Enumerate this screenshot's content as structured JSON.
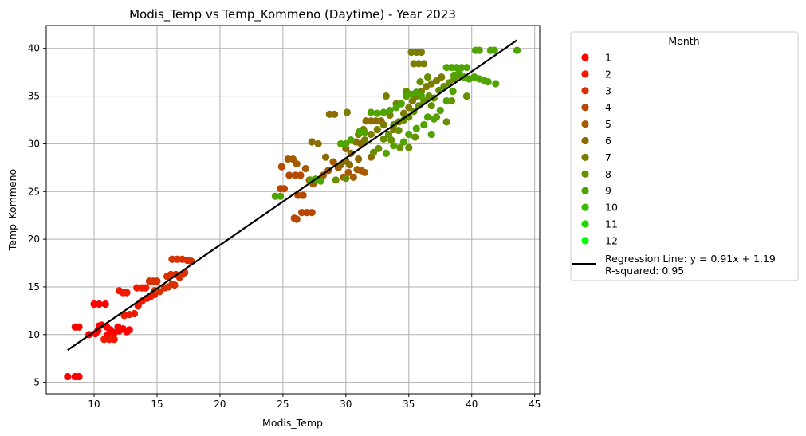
{
  "chart_data": {
    "type": "scatter",
    "title": "Modis_Temp vs Temp_Kommeno (Daytime) - Year 2023",
    "xlabel": "Modis_Temp",
    "ylabel": "Temp_Kommeno",
    "xlim": [
      6.2,
      45.4
    ],
    "ylim": [
      3.8,
      42.4
    ],
    "xticks": [
      10,
      15,
      20,
      25,
      30,
      35,
      40,
      45
    ],
    "yticks": [
      5,
      10,
      15,
      20,
      25,
      30,
      35,
      40
    ],
    "grid": true,
    "legend": {
      "title": "Month",
      "placement": "outside-right",
      "regression_label_line1": "Regression Line: y = 0.91x + 1.19",
      "regression_label_line2": "R-squared: 0.95"
    },
    "regression": {
      "slope": 0.91,
      "intercept": 1.19,
      "r_squared": 0.95,
      "x_range": [
        7.9,
        43.6
      ],
      "color": "#000000"
    },
    "series": [
      {
        "name": "1",
        "color": "#ff0000",
        "points": [
          [
            7.9,
            5.6
          ],
          [
            8.5,
            5.6
          ],
          [
            8.8,
            5.6
          ],
          [
            8.5,
            10.8
          ],
          [
            8.8,
            10.8
          ],
          [
            9.6,
            10.0
          ],
          [
            10.1,
            10.1
          ],
          [
            10.3,
            10.4
          ],
          [
            10.4,
            10.9
          ],
          [
            10.6,
            11.0
          ],
          [
            11.0,
            10.8
          ],
          [
            10.0,
            13.2
          ],
          [
            10.4,
            13.2
          ],
          [
            10.9,
            13.2
          ],
          [
            11.1,
            10.0
          ],
          [
            11.3,
            10.5
          ],
          [
            11.6,
            10.2
          ],
          [
            12.0,
            10.4
          ],
          [
            12.3,
            10.6
          ],
          [
            12.6,
            10.3
          ],
          [
            12.8,
            10.5
          ],
          [
            11.9,
            10.8
          ]
        ]
      },
      {
        "name": "2",
        "color": "#f01a00",
        "points": [
          [
            10.8,
            9.5
          ],
          [
            11.2,
            9.5
          ],
          [
            11.6,
            9.5
          ],
          [
            12.0,
            14.6
          ],
          [
            12.3,
            14.4
          ],
          [
            12.6,
            14.4
          ],
          [
            12.4,
            12.0
          ],
          [
            12.8,
            12.1
          ],
          [
            13.2,
            12.2
          ],
          [
            13.5,
            13.0
          ],
          [
            13.8,
            13.5
          ],
          [
            14.2,
            13.8
          ],
          [
            14.5,
            14.0
          ],
          [
            14.8,
            14.2
          ],
          [
            13.4,
            14.9
          ],
          [
            13.8,
            14.9
          ],
          [
            14.1,
            14.9
          ]
        ]
      },
      {
        "name": "3",
        "color": "#d93000",
        "points": [
          [
            14.4,
            15.6
          ],
          [
            14.7,
            15.6
          ],
          [
            15.0,
            15.6
          ],
          [
            14.8,
            14.6
          ],
          [
            15.2,
            14.5
          ],
          [
            15.6,
            14.9
          ],
          [
            15.9,
            15.0
          ],
          [
            16.2,
            15.3
          ],
          [
            16.4,
            15.2
          ],
          [
            15.8,
            16.1
          ],
          [
            16.1,
            16.3
          ],
          [
            16.5,
            16.3
          ],
          [
            16.8,
            16.0
          ],
          [
            16.2,
            17.9
          ],
          [
            16.6,
            17.9
          ],
          [
            17.0,
            17.9
          ],
          [
            17.4,
            17.8
          ],
          [
            17.7,
            17.7
          ],
          [
            17.0,
            16.3
          ],
          [
            17.2,
            16.5
          ]
        ]
      },
      {
        "name": "4",
        "color": "#b84800",
        "points": [
          [
            25.9,
            22.2
          ],
          [
            26.1,
            22.1
          ],
          [
            26.5,
            22.8
          ],
          [
            26.9,
            22.8
          ],
          [
            27.3,
            22.8
          ],
          [
            26.2,
            24.6
          ],
          [
            26.6,
            24.6
          ],
          [
            24.8,
            25.3
          ],
          [
            25.1,
            25.3
          ],
          [
            24.9,
            27.6
          ],
          [
            25.5,
            26.7
          ],
          [
            26.0,
            26.7
          ],
          [
            26.4,
            26.7
          ]
        ]
      },
      {
        "name": "5",
        "color": "#a55a00",
        "points": [
          [
            25.4,
            28.4
          ],
          [
            25.8,
            28.4
          ],
          [
            26.1,
            27.9
          ],
          [
            26.8,
            27.4
          ],
          [
            27.1,
            26.2
          ],
          [
            27.4,
            25.8
          ],
          [
            27.8,
            26.2
          ],
          [
            28.2,
            26.7
          ],
          [
            28.6,
            27.2
          ],
          [
            29.0,
            28.1
          ],
          [
            29.4,
            27.5
          ],
          [
            29.8,
            26.5
          ],
          [
            30.2,
            27.0
          ],
          [
            30.6,
            26.5
          ],
          [
            30.9,
            27.3
          ],
          [
            31.2,
            27.2
          ],
          [
            31.5,
            27.0
          ]
        ]
      },
      {
        "name": "6",
        "color": "#8c6c00",
        "points": [
          [
            27.3,
            30.2
          ],
          [
            27.8,
            30.0
          ],
          [
            28.4,
            28.6
          ],
          [
            28.7,
            33.1
          ],
          [
            29.1,
            33.1
          ],
          [
            30.0,
            29.5
          ],
          [
            30.4,
            29.0
          ],
          [
            30.8,
            30.2
          ],
          [
            31.2,
            30.0
          ],
          [
            31.4,
            31.5
          ],
          [
            31.6,
            32.4
          ],
          [
            32.0,
            32.4
          ],
          [
            32.4,
            32.4
          ],
          [
            32.8,
            32.4
          ],
          [
            29.6,
            27.8
          ],
          [
            30.0,
            28.2
          ],
          [
            30.3,
            27.8
          ],
          [
            31.0,
            28.4
          ],
          [
            32.0,
            28.6
          ]
        ]
      },
      {
        "name": "7",
        "color": "#7a7e00",
        "points": [
          [
            30.1,
            33.3
          ],
          [
            31.0,
            31.0
          ],
          [
            31.5,
            30.4
          ],
          [
            32.0,
            31.0
          ],
          [
            32.5,
            31.5
          ],
          [
            33.0,
            32.0
          ],
          [
            33.5,
            33.0
          ],
          [
            33.8,
            31.5
          ],
          [
            34.2,
            32.3
          ],
          [
            34.6,
            33.2
          ],
          [
            35.0,
            33.8
          ],
          [
            35.3,
            34.5
          ],
          [
            35.6,
            35.0
          ],
          [
            36.0,
            35.5
          ],
          [
            36.4,
            36.0
          ],
          [
            36.8,
            36.3
          ],
          [
            37.2,
            36.6
          ],
          [
            37.6,
            37.0
          ],
          [
            35.2,
            39.6
          ],
          [
            35.6,
            39.6
          ],
          [
            36.0,
            39.6
          ],
          [
            35.4,
            38.4
          ],
          [
            35.8,
            38.4
          ],
          [
            36.2,
            38.4
          ],
          [
            33.2,
            35.0
          ],
          [
            34.0,
            34.2
          ]
        ]
      },
      {
        "name": "8",
        "color": "#669000",
        "points": [
          [
            29.2,
            26.2
          ],
          [
            30.0,
            26.4
          ],
          [
            32.2,
            29.1
          ],
          [
            32.6,
            29.5
          ],
          [
            33.0,
            30.5
          ],
          [
            33.4,
            31.0
          ],
          [
            33.8,
            32.0
          ],
          [
            34.2,
            31.4
          ],
          [
            34.6,
            32.5
          ],
          [
            35.0,
            32.8
          ],
          [
            35.4,
            33.4
          ],
          [
            35.8,
            34.0
          ],
          [
            36.2,
            34.5
          ],
          [
            36.6,
            35.0
          ],
          [
            37.0,
            34.8
          ],
          [
            37.4,
            35.6
          ],
          [
            37.8,
            36.0
          ],
          [
            38.2,
            36.4
          ],
          [
            38.6,
            36.8
          ],
          [
            39.0,
            37.2
          ],
          [
            36.8,
            34.0
          ],
          [
            37.2,
            32.8
          ],
          [
            35.5,
            30.7
          ],
          [
            35.0,
            29.6
          ],
          [
            34.3,
            29.6
          ],
          [
            33.6,
            30.4
          ],
          [
            34.8,
            35.5
          ],
          [
            35.9,
            36.5
          ],
          [
            36.5,
            37.0
          ],
          [
            38.4,
            34.5
          ],
          [
            38.0,
            32.3
          ],
          [
            39.6,
            35.0
          ]
        ]
      },
      {
        "name": "9",
        "color": "#4fa400",
        "points": [
          [
            24.4,
            24.5
          ],
          [
            24.8,
            24.5
          ],
          [
            27.2,
            26.2
          ],
          [
            27.6,
            26.3
          ],
          [
            28.0,
            26.1
          ],
          [
            29.6,
            30.0
          ],
          [
            30.0,
            30.0
          ],
          [
            30.4,
            30.4
          ],
          [
            31.1,
            31.3
          ],
          [
            31.5,
            31.2
          ],
          [
            32.0,
            33.3
          ],
          [
            32.5,
            33.2
          ],
          [
            33.0,
            33.3
          ],
          [
            33.5,
            33.5
          ],
          [
            34.0,
            33.8
          ],
          [
            34.4,
            34.2
          ],
          [
            34.8,
            35.0
          ],
          [
            35.2,
            35.2
          ],
          [
            35.6,
            35.4
          ],
          [
            36.0,
            35.0
          ],
          [
            36.5,
            32.8
          ],
          [
            37.0,
            32.6
          ],
          [
            37.5,
            33.5
          ],
          [
            38.0,
            34.5
          ],
          [
            38.5,
            35.5
          ],
          [
            38.0,
            38.0
          ],
          [
            38.4,
            38.0
          ],
          [
            38.8,
            38.0
          ],
          [
            39.2,
            38.0
          ],
          [
            39.6,
            38.0
          ],
          [
            38.6,
            37.2
          ],
          [
            39.0,
            37.5
          ],
          [
            39.4,
            37.0
          ],
          [
            39.8,
            36.8
          ],
          [
            40.2,
            37.0
          ],
          [
            40.6,
            36.8
          ],
          [
            41.0,
            36.6
          ],
          [
            41.3,
            36.5
          ],
          [
            41.9,
            36.3
          ],
          [
            40.3,
            39.8
          ],
          [
            40.6,
            39.8
          ],
          [
            41.5,
            39.8
          ],
          [
            41.8,
            39.8
          ],
          [
            43.6,
            39.8
          ],
          [
            33.2,
            29.0
          ],
          [
            33.8,
            29.8
          ],
          [
            34.6,
            30.2
          ],
          [
            35.0,
            31.0
          ],
          [
            35.6,
            31.6
          ],
          [
            36.2,
            32.0
          ],
          [
            36.8,
            31.0
          ]
        ]
      }
    ]
  }
}
